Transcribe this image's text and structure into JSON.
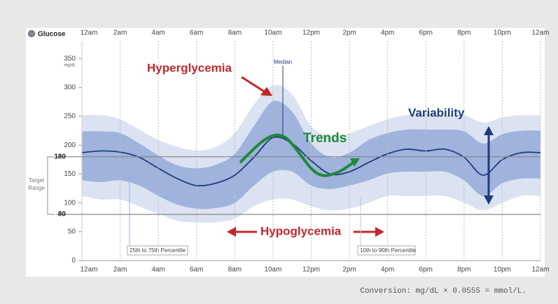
{
  "chart_data": {
    "type": "percentile-band",
    "y_label": "Glucose",
    "y_unit": "mg/dL",
    "x": [
      0,
      1,
      2,
      3,
      4,
      5,
      6,
      7,
      8,
      9,
      10,
      11,
      12,
      13,
      14,
      15,
      16,
      17,
      18,
      19,
      20,
      21,
      22,
      23,
      24
    ],
    "xlim": [
      0,
      24
    ],
    "xticks": [
      {
        "value": 0,
        "label": "12am"
      },
      {
        "value": 2,
        "label": "2am"
      },
      {
        "value": 4,
        "label": "4am"
      },
      {
        "value": 6,
        "label": "6am"
      },
      {
        "value": 8,
        "label": "8am"
      },
      {
        "value": 10,
        "label": "10am"
      },
      {
        "value": 12,
        "label": "12pm"
      },
      {
        "value": 14,
        "label": "2pm"
      },
      {
        "value": 16,
        "label": "4pm"
      },
      {
        "value": 18,
        "label": "6pm"
      },
      {
        "value": 20,
        "label": "8pm"
      },
      {
        "value": 22,
        "label": "10pm"
      },
      {
        "value": 24,
        "label": "12am"
      }
    ],
    "ylim": [
      0,
      380
    ],
    "yticks": [
      0,
      50,
      100,
      150,
      200,
      250,
      300,
      350
    ],
    "grid": true,
    "median": {
      "name": "Median",
      "color": "#1f3c7a",
      "values": [
        187,
        190,
        188,
        179,
        160,
        142,
        130,
        134,
        148,
        179,
        213,
        203,
        173,
        150,
        154,
        170,
        185,
        193,
        190,
        193,
        179,
        148,
        175,
        187,
        187
      ]
    },
    "bands": [
      {
        "name": "10th to 90th Percentile",
        "color": "#dbe3f2",
        "upper": [
          252,
          252,
          245,
          227,
          209,
          197,
          191,
          197,
          221,
          270,
          304,
          288,
          233,
          215,
          221,
          233,
          245,
          252,
          255,
          252,
          252,
          239,
          248,
          252,
          252
        ],
        "lower": [
          112,
          106,
          106,
          94,
          81,
          69,
          66,
          66,
          73,
          94,
          106,
          106,
          94,
          87,
          90,
          100,
          112,
          112,
          112,
          112,
          100,
          87,
          100,
          112,
          112
        ]
      },
      {
        "name": "25th to 75th Percentile",
        "color": "#9fb3dc",
        "upper": [
          224,
          224,
          221,
          203,
          182,
          165,
          160,
          166,
          185,
          233,
          276,
          258,
          203,
          179,
          187,
          209,
          221,
          227,
          227,
          227,
          224,
          203,
          219,
          225,
          225
        ],
        "lower": [
          139,
          136,
          139,
          130,
          112,
          97,
          90,
          91,
          100,
          130,
          154,
          154,
          130,
          124,
          130,
          139,
          151,
          154,
          154,
          154,
          139,
          112,
          134,
          142,
          142
        ]
      }
    ],
    "target_range": {
      "label": [
        "Target",
        "Range"
      ],
      "high": 180,
      "low": 80
    },
    "annotations": {
      "hyperglycemia": "Hyperglycemia",
      "trends": "Trends",
      "variability": "Variability",
      "hypoglycemia": "Hypoglycemia"
    },
    "footnote": "Conversion: mg/dL × 0.0555 = mmol/L."
  }
}
